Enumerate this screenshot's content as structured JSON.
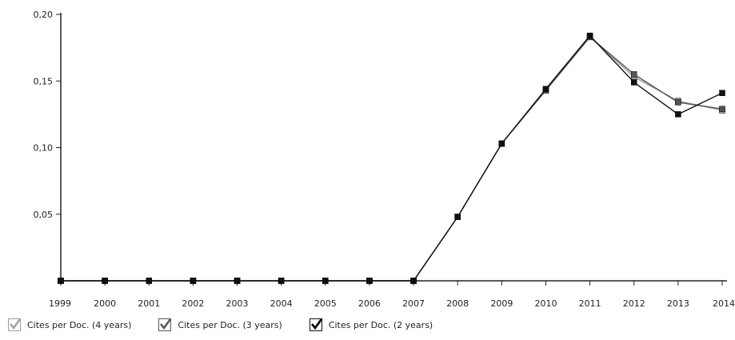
{
  "chart_data": {
    "type": "line",
    "title": "",
    "xlabel": "",
    "ylabel": "",
    "x": [
      1999,
      2000,
      2001,
      2002,
      2003,
      2004,
      2005,
      2006,
      2007,
      2008,
      2009,
      2010,
      2011,
      2012,
      2013,
      2014
    ],
    "x_tick_labels": [
      "1999",
      "2000",
      "2001",
      "2002",
      "2003",
      "2004",
      "2005",
      "2006",
      "2007",
      "2008",
      "2009",
      "2010",
      "2011",
      "2012",
      "2013",
      "2014"
    ],
    "y_tick_labels": [
      "0,20",
      "0,15",
      "0,10",
      "0,05"
    ],
    "y_ticks": [
      0.2,
      0.15,
      0.1,
      0.05
    ],
    "ylim": [
      0,
      0.2
    ],
    "grid": false,
    "legend_position": "bottom-left",
    "series": [
      {
        "name": "Cites per Doc. (4 years)",
        "color": "#9aa0a6",
        "values": [
          0,
          0,
          0,
          0,
          0,
          0,
          0,
          0,
          0,
          0.048,
          0.103,
          0.143,
          0.183,
          0.153,
          0.135,
          0.128
        ]
      },
      {
        "name": "Cites per Doc. (3 years)",
        "color": "#555555",
        "values": [
          0,
          0,
          0,
          0,
          0,
          0,
          0,
          0,
          0,
          0.048,
          0.103,
          0.143,
          0.183,
          0.155,
          0.134,
          0.129
        ]
      },
      {
        "name": "Cites per Doc. (2 years)",
        "color": "#111111",
        "values": [
          0,
          0,
          0,
          0,
          0,
          0,
          0,
          0,
          0,
          0.048,
          0.103,
          0.144,
          0.184,
          0.149,
          0.125,
          0.141
        ]
      }
    ]
  },
  "legend": {
    "items": [
      {
        "label": "Cites per Doc. (4 years)",
        "checked": true,
        "icon": "checkbox-checked-icon",
        "color": "#9aa0a6"
      },
      {
        "label": "Cites per Doc. (3 years)",
        "checked": true,
        "icon": "checkbox-checked-icon",
        "color": "#555555"
      },
      {
        "label": "Cites per Doc. (2 years)",
        "checked": true,
        "icon": "checkbox-checked-icon",
        "color": "#111111"
      }
    ]
  }
}
